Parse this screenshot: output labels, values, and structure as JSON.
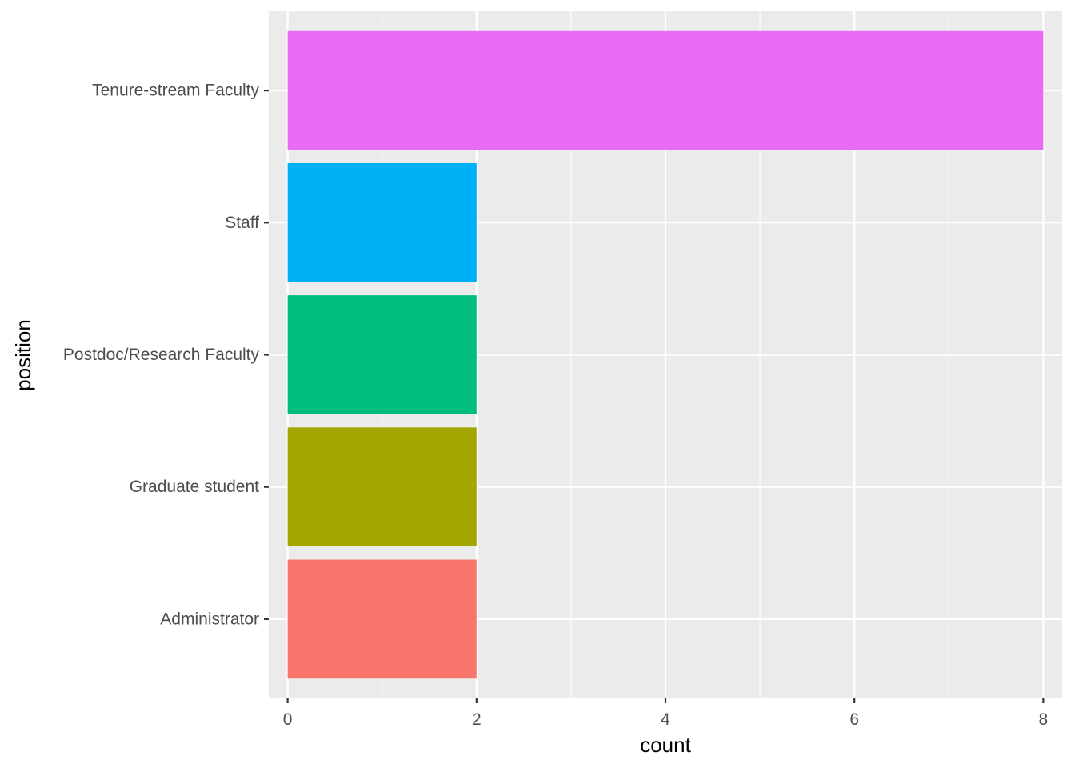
{
  "chart_data": {
    "type": "bar",
    "orientation": "horizontal",
    "categories": [
      "Administrator",
      "Graduate student",
      "Postdoc/Research Faculty",
      "Staff",
      "Tenure-stream Faculty"
    ],
    "values": [
      2,
      2,
      2,
      2,
      8
    ],
    "colors": [
      "#F8766D",
      "#A3A500",
      "#00BF7D",
      "#00B0F6",
      "#E76BF3"
    ],
    "xlabel": "count",
    "ylabel": "position",
    "xlim": [
      -0.2,
      8.2
    ],
    "xticks": [
      "0",
      "2",
      "4",
      "6",
      "8"
    ],
    "grid": true,
    "legend": "none",
    "panel_background": "#EBEBEB",
    "grid_color": "#FFFFFF"
  }
}
